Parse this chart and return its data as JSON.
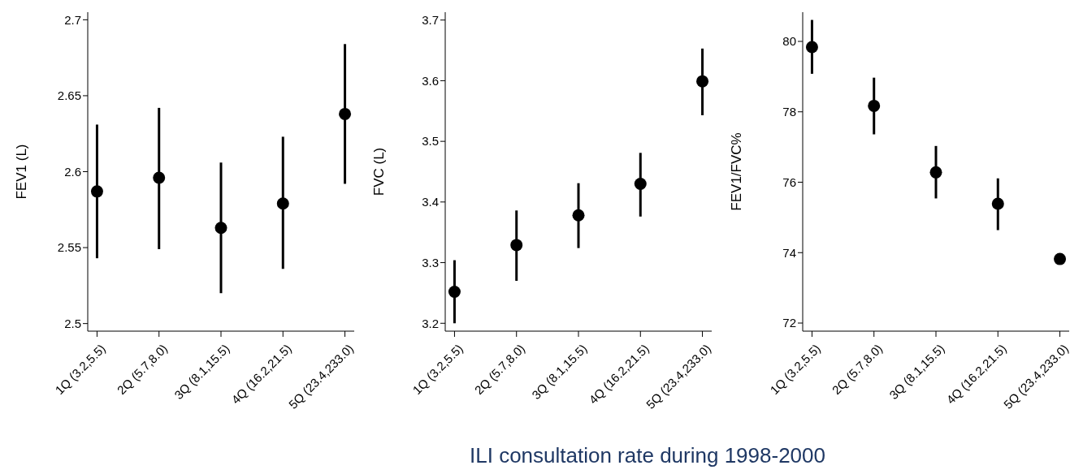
{
  "chart_data": [
    {
      "type": "scatter",
      "categories": [
        "1Q (3.2,5.5)",
        "2Q (5.7,8.0)",
        "3Q (8.1,15.5)",
        "4Q (16.2,21.5)",
        "5Q (23.4,233.0)"
      ],
      "values": [
        2.587,
        2.596,
        2.563,
        2.579,
        2.638
      ],
      "errors": [
        [
          2.543,
          2.631
        ],
        [
          2.549,
          2.642
        ],
        [
          2.52,
          2.606
        ],
        [
          2.536,
          2.623
        ],
        [
          2.592,
          2.684
        ]
      ],
      "color": "#000000",
      "marker": "circle",
      "ylabel": "FEV1 (L)",
      "ylim": [
        2.495,
        2.705
      ],
      "yticks": [
        2.5,
        2.55,
        2.6,
        2.65,
        2.7
      ]
    },
    {
      "type": "scatter",
      "categories": [
        "1Q (3.2,5.5)",
        "2Q (5.7,8.0)",
        "3Q (8.1,15.5)",
        "4Q (16.2,21.5)",
        "5Q (23.4,233.0)"
      ],
      "values": [
        3.252,
        3.329,
        3.378,
        3.43,
        3.599
      ],
      "errors": [
        [
          3.2,
          3.304
        ],
        [
          3.27,
          3.386
        ],
        [
          3.324,
          3.431
        ],
        [
          3.376,
          3.481
        ],
        [
          3.543,
          3.653
        ]
      ],
      "color": "#000000",
      "marker": "circle",
      "ylabel": "FVC (L)",
      "xlabel": "ILI consultation rate during 1998-2000",
      "ylim": [
        3.187,
        3.713
      ],
      "yticks": [
        3.2,
        3.3,
        3.4,
        3.5,
        3.6,
        3.7
      ]
    },
    {
      "type": "scatter",
      "categories": [
        "1Q (3.2,5.5)",
        "2Q (5.7,8.0)",
        "3Q (8.1,15.5)",
        "4Q (16.2,21.5)",
        "5Q (23.4,233.0)"
      ],
      "values": [
        79.84,
        78.17,
        76.28,
        75.39,
        73.82
      ],
      "errors": [
        [
          79.08,
          80.61
        ],
        [
          77.36,
          78.97
        ],
        [
          75.54,
          77.03
        ],
        [
          74.64,
          76.11
        ],
        null
      ],
      "color": "#000000",
      "marker": "circle",
      "ylabel": "FEV1/FVC%",
      "ylim": [
        71.77,
        80.83
      ],
      "yticks": [
        72,
        74,
        76,
        78,
        80
      ]
    }
  ]
}
